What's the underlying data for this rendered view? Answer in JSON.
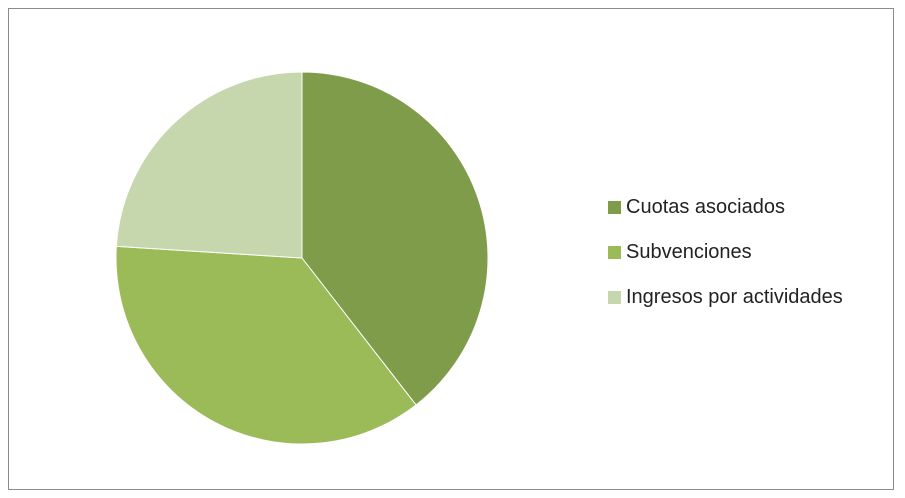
{
  "chart_data": {
    "type": "pie",
    "categories": [
      "Cuotas asociados",
      "Subvenciones",
      "Ingresos por actividades"
    ],
    "values": [
      39.5,
      36.5,
      24.0
    ],
    "colors": [
      "#7f9c4a",
      "#9bbb59",
      "#c6d6ad"
    ],
    "title": "",
    "legend_position": "right"
  }
}
